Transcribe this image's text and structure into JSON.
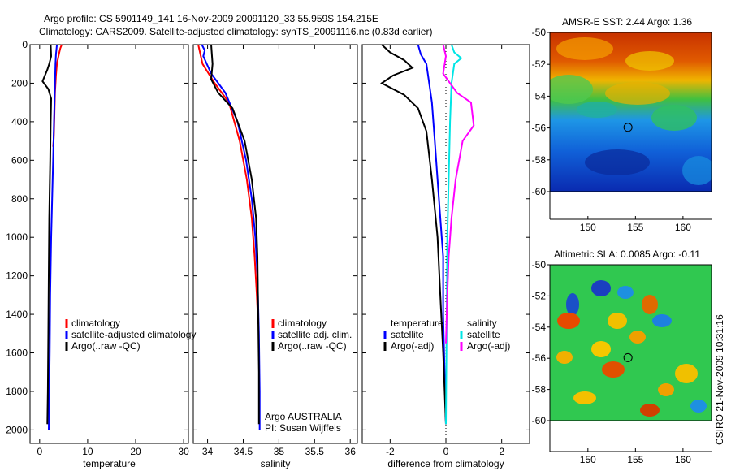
{
  "header": {
    "line1": "Argo profile: CS 5901149_141 16-Nov-2009 20091120_33 55.959S 154.215E",
    "line2": "Climatology: CARS2009. Satellite-adjusted climatology: synTS_20091116.nc (0.83d earlier)"
  },
  "side_stamp": "CSIRO 21-Nov-2009 10:31:16",
  "colors": {
    "climatology": "#ff0000",
    "satellite": "#0000ff",
    "argo": "#000000",
    "salinity_sat": "#00e5e5",
    "salinity_argo": "#ff00ff"
  },
  "chart_data": [
    {
      "type": "line",
      "name": "temperature-profile",
      "xlabel": "temperature",
      "xlim": [
        -2,
        31
      ],
      "ylim": [
        2070,
        0
      ],
      "xticks": [
        "0",
        "10",
        "20",
        "30"
      ],
      "xtick_values": [
        0,
        10,
        20,
        30
      ],
      "yticks": [
        "0",
        "200",
        "400",
        "600",
        "800",
        "1000",
        "1200",
        "1400",
        "1600",
        "1800",
        "2000"
      ],
      "ytick_values": [
        0,
        200,
        400,
        600,
        800,
        1000,
        1200,
        1400,
        1600,
        1800,
        2000
      ],
      "legend": {
        "position": "lower-right",
        "entries": [
          "climatology",
          "satellite-adjusted climatology",
          "Argo(..raw -QC)"
        ]
      },
      "series": [
        {
          "name": "climatology",
          "color": "#ff0000",
          "x": [
            4.6,
            4.3,
            4.0,
            3.6,
            3.4,
            3.2,
            3.1,
            3.0,
            2.9,
            2.8
          ],
          "y": [
            0,
            20,
            50,
            100,
            160,
            250,
            350,
            450,
            500,
            530
          ]
        },
        {
          "name": "satellite-adjusted climatology",
          "color": "#0000ff",
          "x": [
            3.6,
            3.4,
            3.3,
            3.2,
            3.1,
            3.0,
            2.8,
            2.6,
            2.4,
            2.2,
            2.1,
            2.0,
            1.9
          ],
          "y": [
            0,
            50,
            100,
            200,
            300,
            400,
            600,
            800,
            1000,
            1300,
            1600,
            1800,
            2000
          ]
        },
        {
          "name": "Argo(..raw -QC)",
          "color": "#000000",
          "x": [
            2.3,
            2.4,
            2.0,
            1.6,
            1.1,
            0.6,
            0.9,
            1.8,
            2.4,
            2.3,
            2.2,
            2.0,
            1.9,
            1.8,
            1.7,
            1.6
          ],
          "y": [
            0,
            60,
            100,
            130,
            160,
            190,
            200,
            230,
            280,
            400,
            600,
            900,
            1200,
            1500,
            1800,
            1970
          ]
        }
      ]
    },
    {
      "type": "line",
      "name": "salinity-profile",
      "xlabel": "salinity",
      "xlim": [
        33.8,
        36.1
      ],
      "ylim": [
        2070,
        0
      ],
      "xticks": [
        "34",
        "34.5",
        "35",
        "35.5",
        "36"
      ],
      "xtick_values": [
        34,
        34.5,
        35,
        35.5,
        36
      ],
      "legend": {
        "position": "lower-right",
        "entries": [
          "climatology",
          "satellite adj. clim.",
          "Argo(..raw -QC)"
        ]
      },
      "annotations": [
        "Argo AUSTRALIA",
        "PI: Susan Wijffels"
      ],
      "series": [
        {
          "name": "climatology",
          "color": "#ff0000",
          "x": [
            33.87,
            33.93,
            34.1,
            34.3,
            34.45,
            34.55,
            34.62,
            34.66,
            34.69,
            34.71
          ],
          "y": [
            0,
            100,
            200,
            300,
            500,
            700,
            900,
            1100,
            1300,
            1450
          ]
        },
        {
          "name": "satellite adj. clim.",
          "color": "#0000ff",
          "x": [
            33.92,
            33.96,
            33.94,
            34.05,
            34.25,
            34.42,
            34.54,
            34.62,
            34.67,
            34.7,
            34.72,
            34.73,
            34.73
          ],
          "y": [
            0,
            30,
            60,
            150,
            250,
            400,
            600,
            800,
            1000,
            1200,
            1500,
            1800,
            2000
          ]
        },
        {
          "name": "Argo(..raw -QC)",
          "color": "#000000",
          "x": [
            34.05,
            34.07,
            34.05,
            34.15,
            34.35,
            34.52,
            34.62,
            34.68,
            34.7,
            34.71,
            34.72,
            34.72
          ],
          "y": [
            0,
            100,
            180,
            250,
            330,
            500,
            700,
            900,
            1100,
            1400,
            1700,
            1970
          ]
        }
      ]
    },
    {
      "type": "line",
      "name": "difference-profile",
      "xlabel": "difference from climatology",
      "xlim": [
        -3.0,
        3.0
      ],
      "ylim": [
        2070,
        0
      ],
      "xticks": [
        "-2",
        "0",
        "2"
      ],
      "xtick_values": [
        -2,
        0,
        2
      ],
      "legend_groups": [
        {
          "title": "temperature",
          "entries": [
            "satellite",
            "Argo(-adj)"
          ]
        },
        {
          "title": "salinity",
          "entries": [
            "satellite",
            "Argo(-adj)"
          ]
        }
      ],
      "series": [
        {
          "name": "temperature satellite",
          "color": "#0000ff",
          "x": [
            -1.0,
            -0.9,
            -0.7,
            -0.6,
            -0.5,
            -0.4,
            -0.3,
            -0.2,
            -0.1,
            -0.1,
            0.0
          ],
          "y": [
            0,
            50,
            100,
            200,
            300,
            500,
            700,
            900,
            1100,
            1400,
            1970
          ]
        },
        {
          "name": "temperature Argo(-adj)",
          "color": "#000000",
          "x": [
            -2.3,
            -2.0,
            -1.5,
            -1.2,
            -1.9,
            -2.3,
            -1.5,
            -1.0,
            -0.7,
            -0.5,
            -0.3,
            -0.2,
            -0.1,
            0.0
          ],
          "y": [
            0,
            40,
            80,
            120,
            160,
            200,
            260,
            330,
            450,
            700,
            1000,
            1300,
            1600,
            1970
          ]
        },
        {
          "name": "salinity satellite",
          "color": "#00e5e5",
          "x": [
            0.2,
            0.3,
            0.55,
            0.3,
            0.2,
            0.15,
            0.1,
            0.05,
            0.03,
            0.0
          ],
          "y": [
            0,
            40,
            70,
            100,
            200,
            400,
            700,
            1000,
            1400,
            1970
          ]
        },
        {
          "name": "salinity Argo(-adj)",
          "color": "#ff00ff",
          "x": [
            -0.1,
            0.0,
            -0.1,
            0.4,
            0.9,
            1.0,
            0.6,
            0.35,
            0.2,
            0.1,
            0.05,
            0.02,
            0.0
          ],
          "y": [
            0,
            60,
            150,
            250,
            300,
            420,
            500,
            700,
            900,
            1100,
            1300,
            1450,
            1550
          ]
        }
      ]
    },
    {
      "type": "heatmap",
      "name": "sst-map",
      "title": "AMSR-E SST: 2.44  Argo: 1.36",
      "xlim": [
        146,
        163
      ],
      "ylim": [
        -60,
        -50
      ],
      "xticks": [
        "150",
        "155",
        "160"
      ],
      "xtick_values": [
        150,
        155,
        160
      ],
      "yticks": [
        "-50",
        "-52",
        "-54",
        "-56",
        "-58",
        "-60"
      ],
      "ytick_values": [
        -50,
        -52,
        -54,
        -56,
        -58,
        -60
      ],
      "marker": {
        "lon": 154.215,
        "lat": -55.959
      }
    },
    {
      "type": "heatmap",
      "name": "sla-map",
      "title": "Altimetric SLA: 0.0085  Argo: -0.11",
      "xlim": [
        146,
        163
      ],
      "ylim": [
        -60,
        -50
      ],
      "xticks": [
        "150",
        "155",
        "160"
      ],
      "xtick_values": [
        150,
        155,
        160
      ],
      "yticks": [
        "-50",
        "-52",
        "-54",
        "-56",
        "-58",
        "-60"
      ],
      "ytick_values": [
        -50,
        -52,
        -54,
        -56,
        -58,
        -60
      ],
      "marker": {
        "lon": 154.215,
        "lat": -55.959
      }
    }
  ]
}
